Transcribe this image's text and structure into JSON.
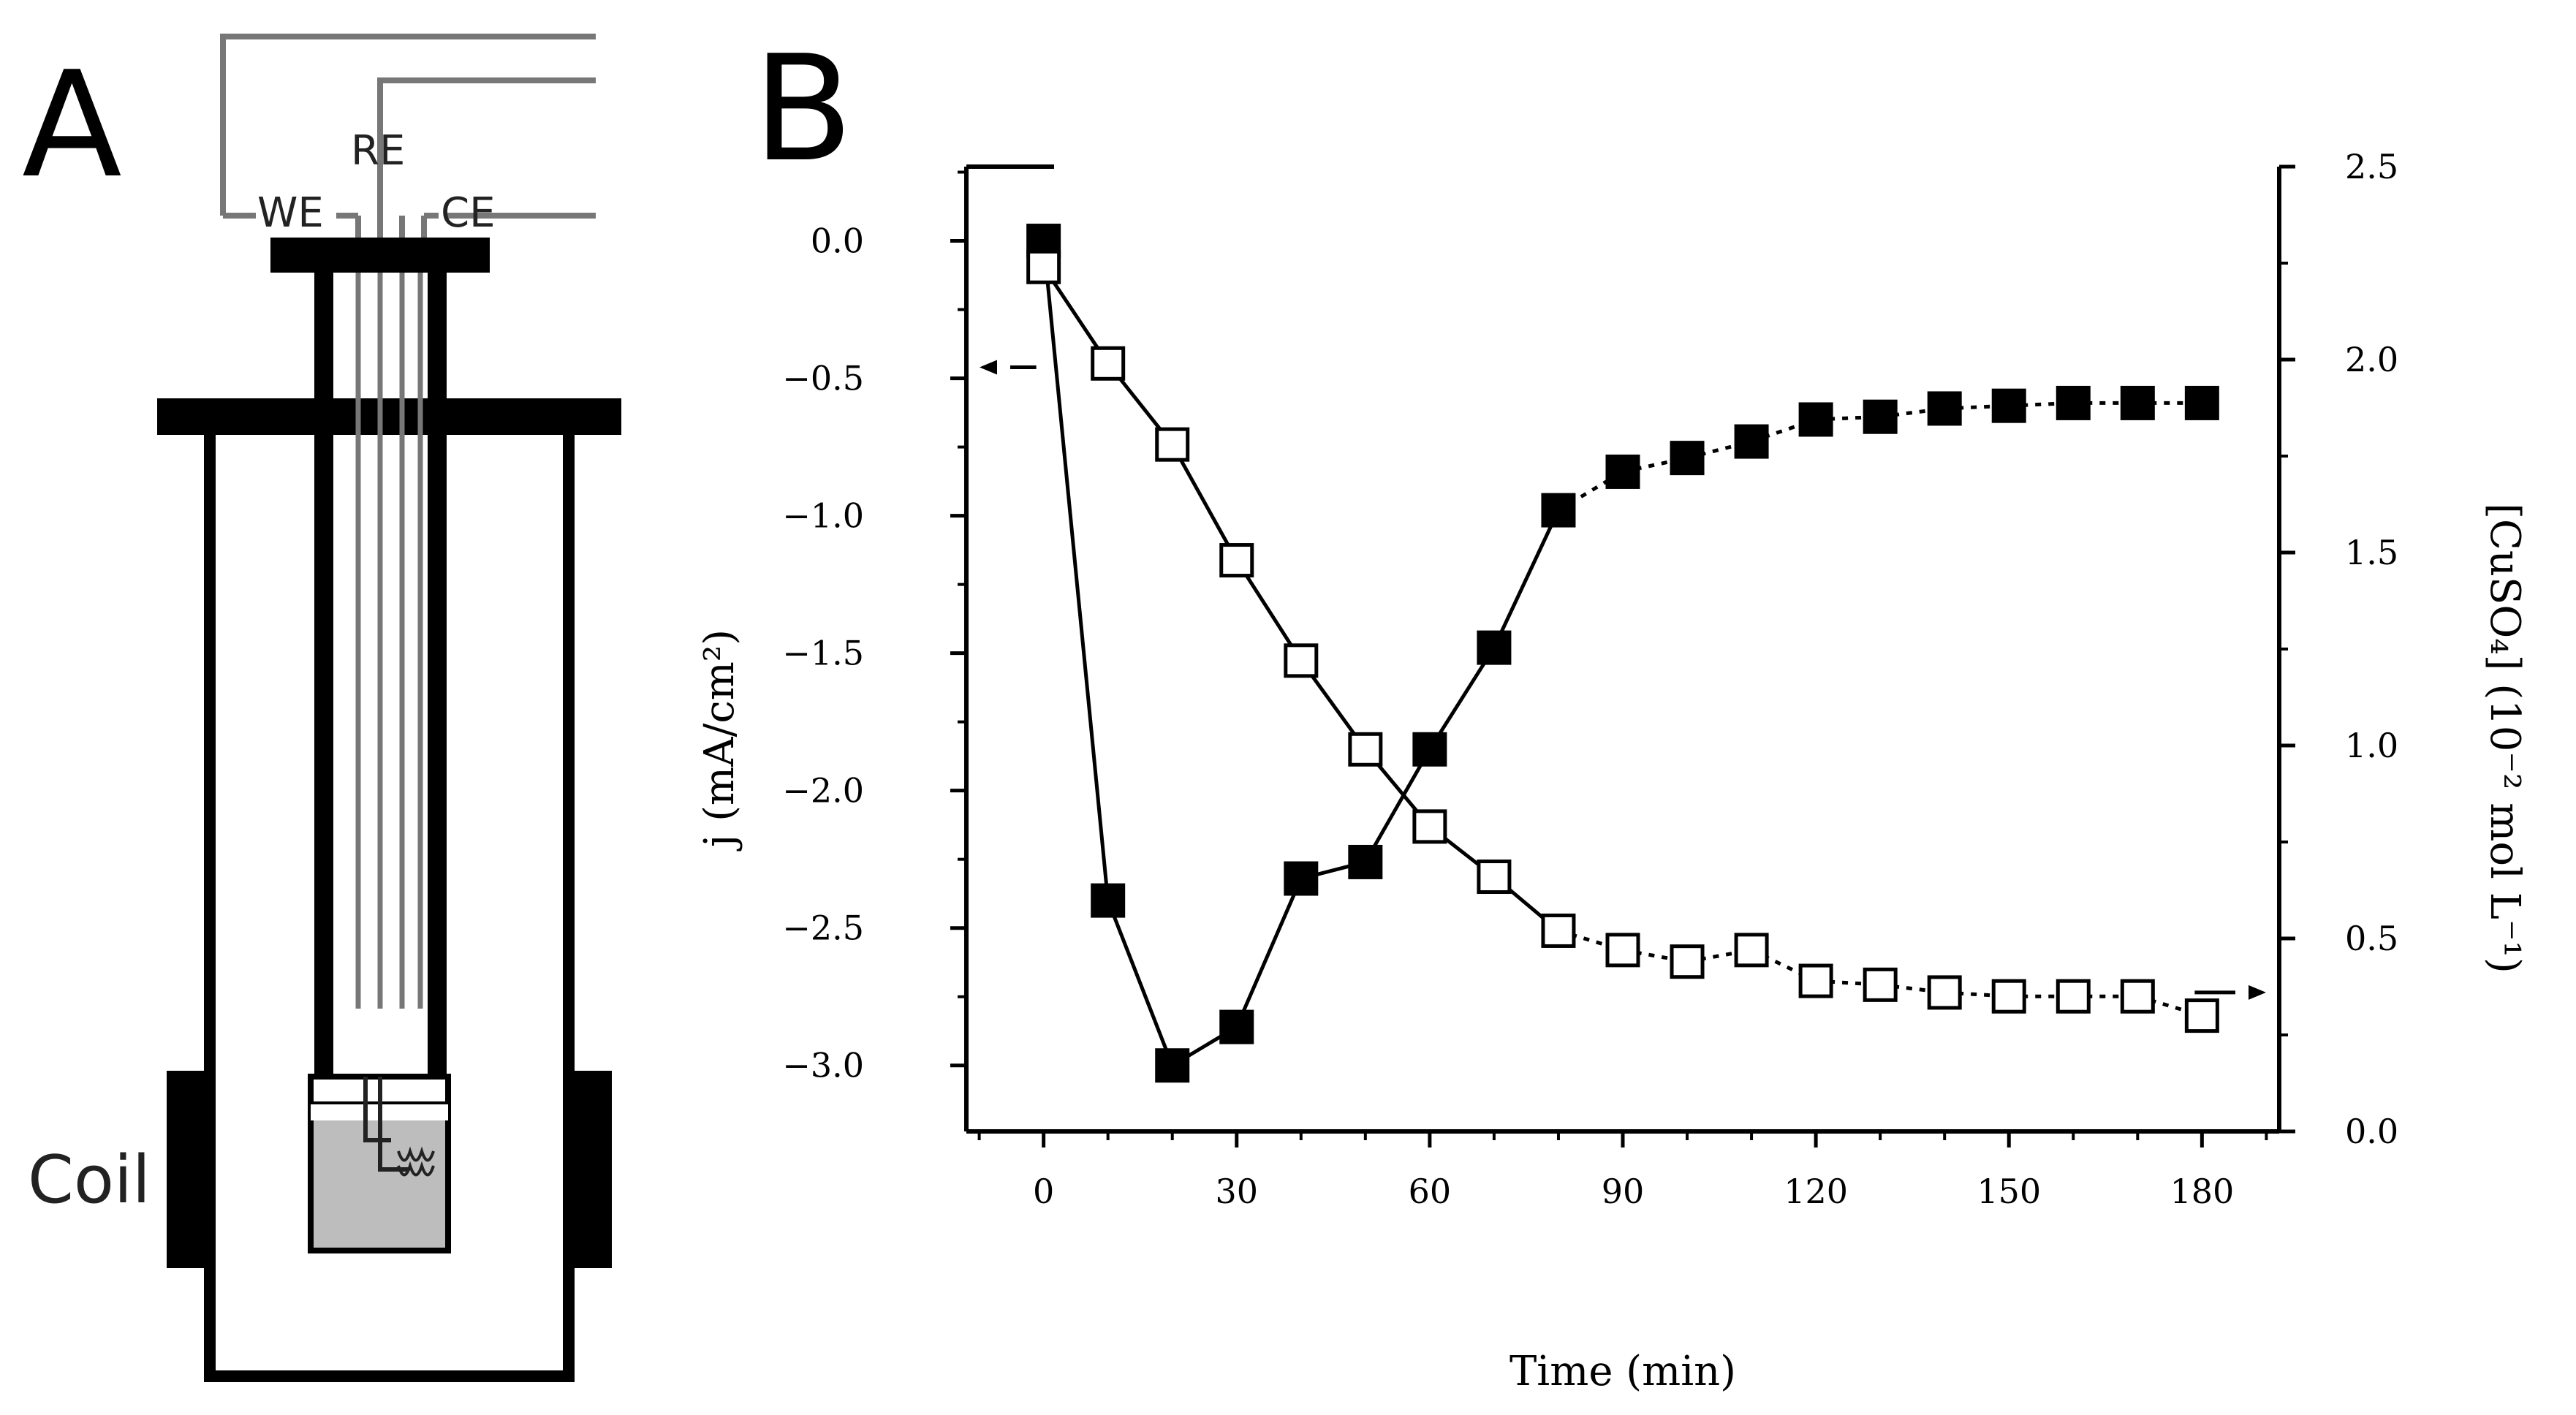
{
  "panels": {
    "a_letter": "A",
    "b_letter": "B"
  },
  "diagram": {
    "labels": {
      "we": "WE",
      "re": "RE",
      "ce": "CE",
      "coil": "Coil"
    }
  },
  "chart_data": {
    "type": "scatter",
    "xlabel": "Time (min)",
    "ylabel_left": "j (mA/cm²)",
    "ylabel_right": "[CuSO₄] (10⁻² mol L⁻¹)",
    "xlim": [
      -12,
      192
    ],
    "ylim_left": [
      -3.24,
      0.27
    ],
    "ylim_right": [
      0,
      2.5
    ],
    "x_ticks": [
      0,
      30,
      60,
      90,
      120,
      150,
      180
    ],
    "x_tick_labels": [
      "0",
      "30",
      "60",
      "90",
      "120",
      "150",
      "180"
    ],
    "y_left_ticks": [
      0,
      -0.5,
      -1.0,
      -1.5,
      -2.0,
      -2.5,
      -3.0
    ],
    "y_left_tick_labels": [
      "0.0",
      "−0.5",
      "−1.0",
      "−1.5",
      "−2.0",
      "−2.5",
      "−3.0"
    ],
    "y_right_ticks": [
      0,
      0.5,
      1.0,
      1.5,
      2.0,
      2.5
    ],
    "y_right_tick_labels": [
      "0.0",
      "0.5",
      "1.0",
      "1.5",
      "2.0",
      "2.5"
    ],
    "grid": false,
    "series": [
      {
        "marker": "filled-square",
        "axis": "left",
        "color": "#000000",
        "x": [
          0,
          10,
          20,
          30,
          40,
          50,
          60,
          70,
          80,
          90,
          100,
          110,
          120,
          130,
          140,
          150,
          160,
          170,
          180
        ],
        "y": [
          0.0,
          -2.4,
          -3.0,
          -2.86,
          -2.32,
          -2.26,
          -1.85,
          -1.48,
          -0.98,
          -0.84,
          -0.79,
          -0.73,
          -0.65,
          -0.64,
          -0.61,
          -0.6,
          -0.59,
          -0.59,
          -0.59
        ]
      },
      {
        "marker": "open-square",
        "axis": "right",
        "color": "#000000",
        "x": [
          0,
          10,
          20,
          30,
          40,
          50,
          60,
          70,
          80,
          90,
          100,
          110,
          120,
          130,
          140,
          150,
          160,
          170,
          180
        ],
        "y": [
          2.24,
          1.99,
          1.78,
          1.48,
          1.22,
          0.99,
          0.79,
          0.66,
          0.52,
          0.47,
          0.44,
          0.47,
          0.39,
          0.38,
          0.36,
          0.35,
          0.35,
          0.35,
          0.3
        ]
      }
    ]
  }
}
